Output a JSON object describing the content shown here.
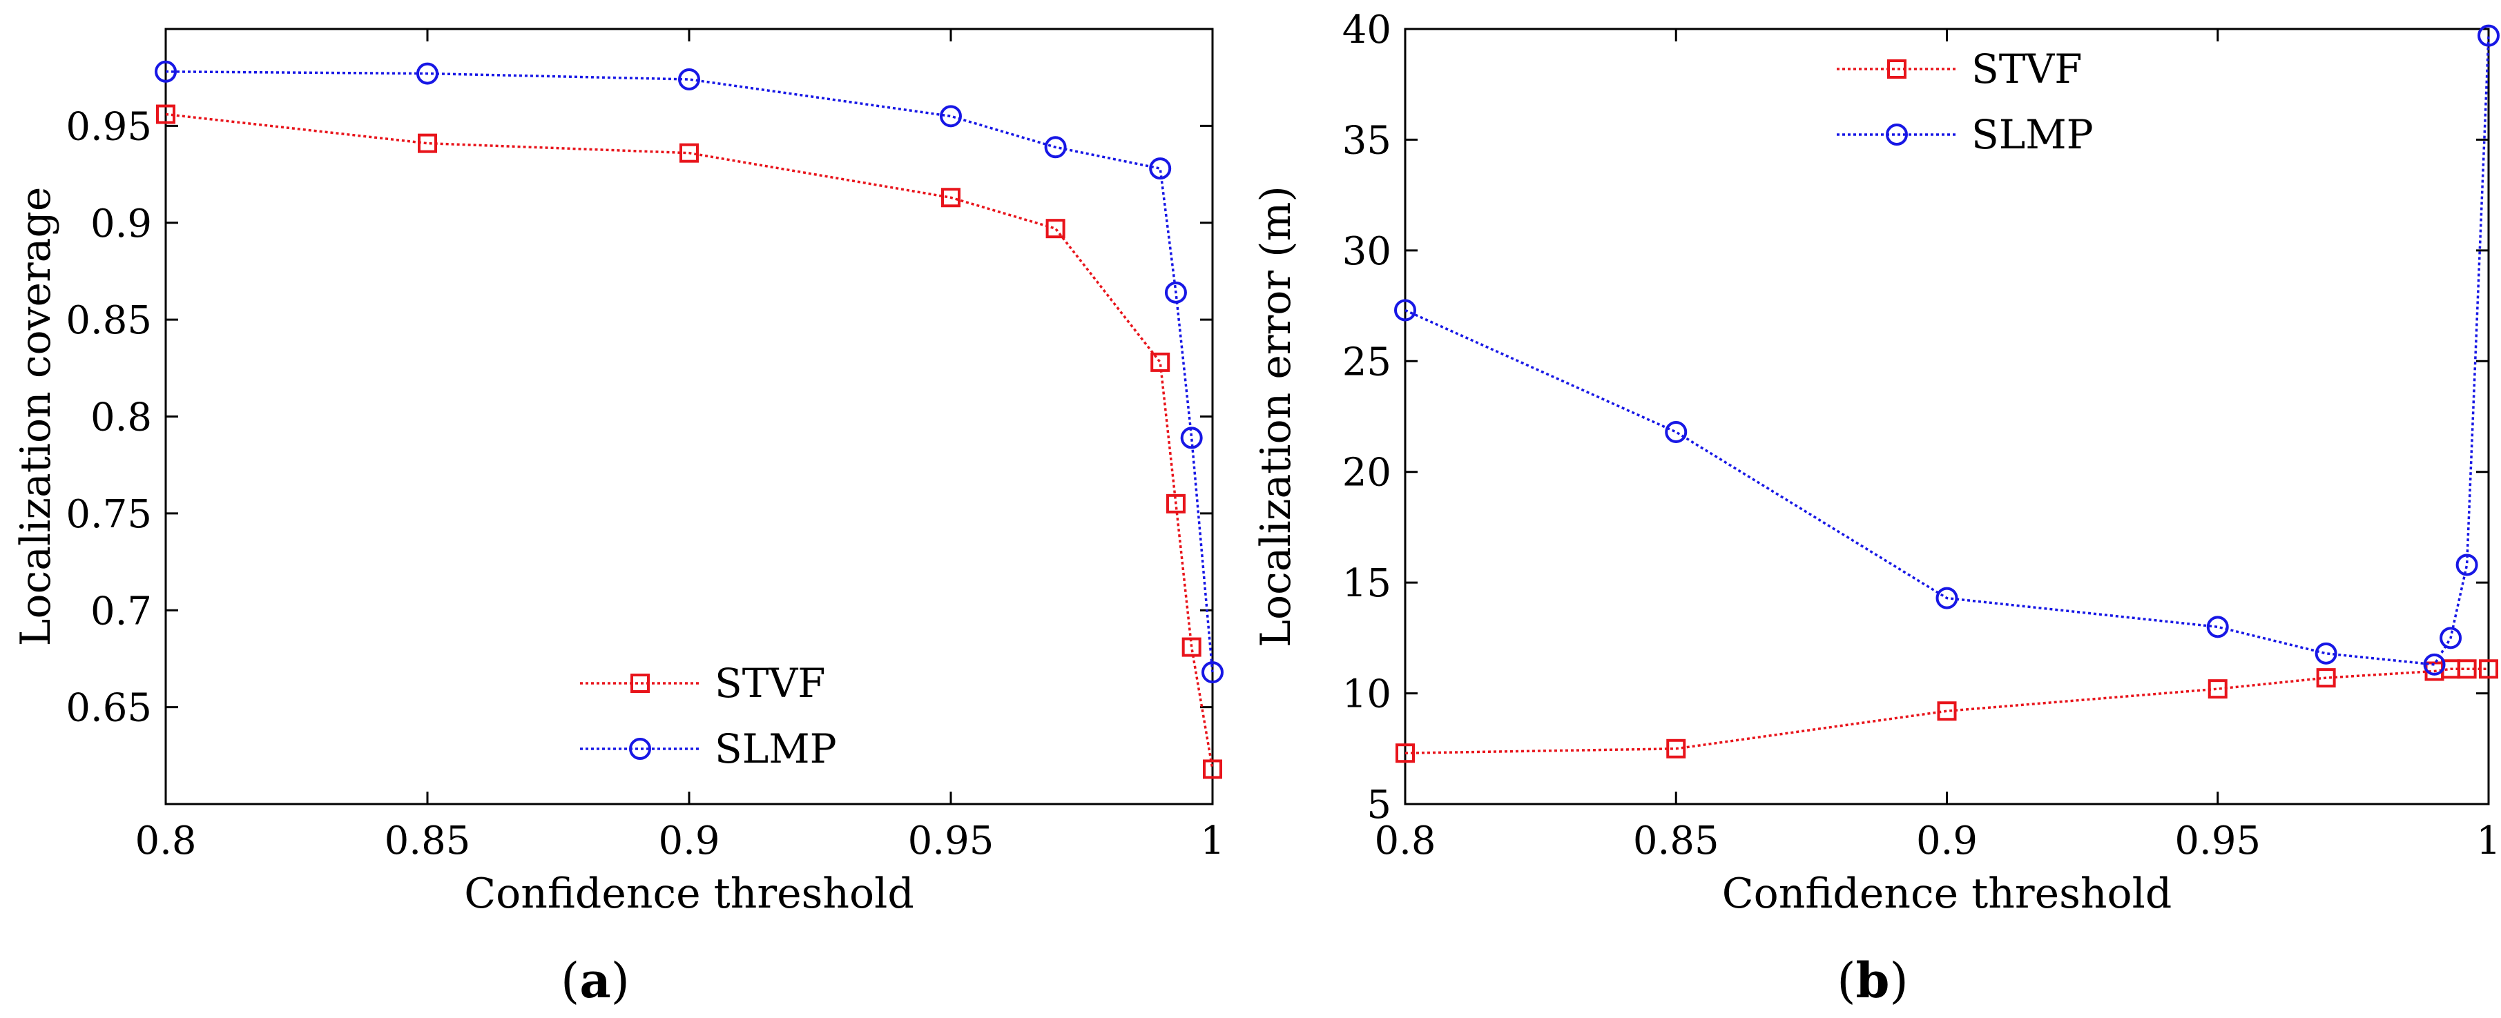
{
  "chart_data": [
    {
      "type": "line",
      "caption_open": "(",
      "caption": "a",
      "caption_close": ")",
      "xlabel": "Confidence threshold",
      "ylabel": "Localization coverage",
      "xlim": [
        0.8,
        1.0
      ],
      "ylim": [
        0.6,
        1.0
      ],
      "xticks": [
        0.8,
        0.85,
        0.9,
        0.95,
        1.0
      ],
      "xtick_labels": [
        "0.8",
        "0.85",
        "0.9",
        "0.95",
        "1"
      ],
      "yticks": [
        0.65,
        0.7,
        0.75,
        0.8,
        0.85,
        0.9,
        0.95
      ],
      "ytick_labels": [
        "0.65",
        "0.7",
        "0.75",
        "0.8",
        "0.85",
        "0.9",
        "0.95"
      ],
      "legend_position": "lower-center",
      "series": [
        {
          "name": "STVF",
          "color": "#e8141b",
          "marker": "square",
          "x": [
            0.8,
            0.85,
            0.9,
            0.95,
            0.97,
            0.99,
            0.993,
            0.996,
            1.0
          ],
          "y": [
            0.956,
            0.941,
            0.936,
            0.913,
            0.897,
            0.828,
            0.755,
            0.681,
            0.618
          ]
        },
        {
          "name": "SLMP",
          "color": "#1717e5",
          "marker": "circle",
          "x": [
            0.8,
            0.85,
            0.9,
            0.95,
            0.97,
            0.99,
            0.993,
            0.996,
            1.0
          ],
          "y": [
            0.978,
            0.977,
            0.974,
            0.955,
            0.939,
            0.928,
            0.864,
            0.789,
            0.668
          ]
        }
      ]
    },
    {
      "type": "line",
      "caption_open": "(",
      "caption": "b",
      "caption_close": ")",
      "xlabel": "Confidence threshold",
      "ylabel": "Localization error (m)",
      "xlim": [
        0.8,
        1.0
      ],
      "ylim": [
        5,
        40
      ],
      "xticks": [
        0.8,
        0.85,
        0.9,
        0.95,
        1.0
      ],
      "xtick_labels": [
        "0.8",
        "0.85",
        "0.9",
        "0.95",
        "1"
      ],
      "yticks": [
        5,
        10,
        15,
        20,
        25,
        30,
        35,
        40
      ],
      "ytick_labels": [
        "5",
        "10",
        "15",
        "20",
        "25",
        "30",
        "35",
        "40"
      ],
      "legend_position": "top-center",
      "series": [
        {
          "name": "STVF",
          "color": "#e8141b",
          "marker": "square",
          "x": [
            0.8,
            0.85,
            0.9,
            0.95,
            0.97,
            0.99,
            0.993,
            0.996,
            1.0
          ],
          "y": [
            7.3,
            7.5,
            9.2,
            10.2,
            10.7,
            11.0,
            11.1,
            11.1,
            11.1
          ]
        },
        {
          "name": "SLMP",
          "color": "#1717e5",
          "marker": "circle",
          "x": [
            0.8,
            0.85,
            0.9,
            0.95,
            0.97,
            0.99,
            0.993,
            0.996,
            1.0
          ],
          "y": [
            27.3,
            21.8,
            14.3,
            13.0,
            11.8,
            11.3,
            12.5,
            15.8,
            39.7
          ]
        }
      ]
    }
  ]
}
